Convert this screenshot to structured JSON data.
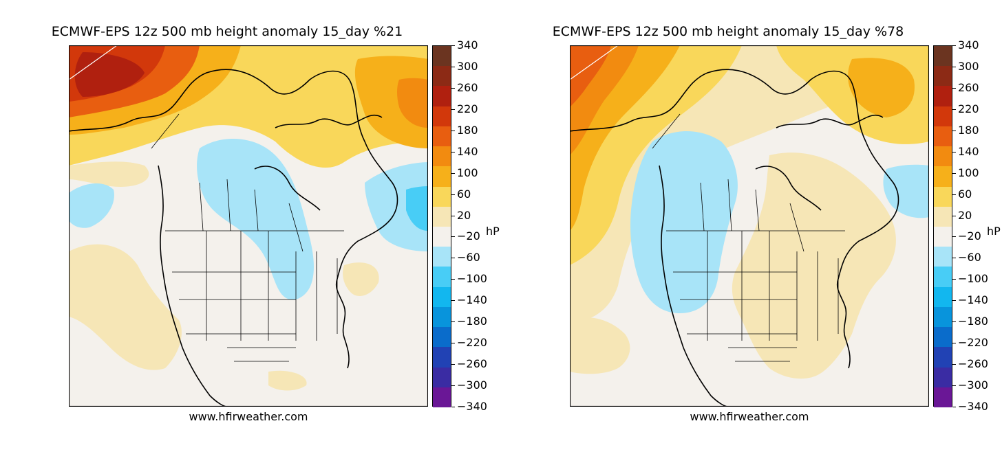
{
  "panels": [
    {
      "title": "ECMWF-EPS 12z 500 mb height anomaly 15_day %21",
      "credit": "www.hfirweather.com",
      "unit": "hP"
    },
    {
      "title": "ECMWF-EPS 12z 500 mb height anomaly 15_day %78",
      "credit": "www.hfirweather.com",
      "unit": "hP"
    }
  ],
  "colorbar": {
    "labels": [
      "340",
      "300",
      "260",
      "220",
      "180",
      "140",
      "100",
      "60",
      "20",
      "−20",
      "−60",
      "−100",
      "−140",
      "−180",
      "−220",
      "−260",
      "−300",
      "−340"
    ],
    "colors": [
      "#6b3420",
      "#8c2a15",
      "#b0200f",
      "#d2380b",
      "#e85e10",
      "#f28b10",
      "#f6b01a",
      "#f9d75a",
      "#f6e6b6",
      "#f4f1ec",
      "#a8e4f8",
      "#48cdf6",
      "#12b7ef",
      "#0894dc",
      "#0a6ccb",
      "#2142b4",
      "#3a2ca3",
      "#6a1796"
    ]
  },
  "legend_colors": {
    "ocean": "#f4f1ec",
    "coast": "#000000",
    "border": "#000000"
  }
}
